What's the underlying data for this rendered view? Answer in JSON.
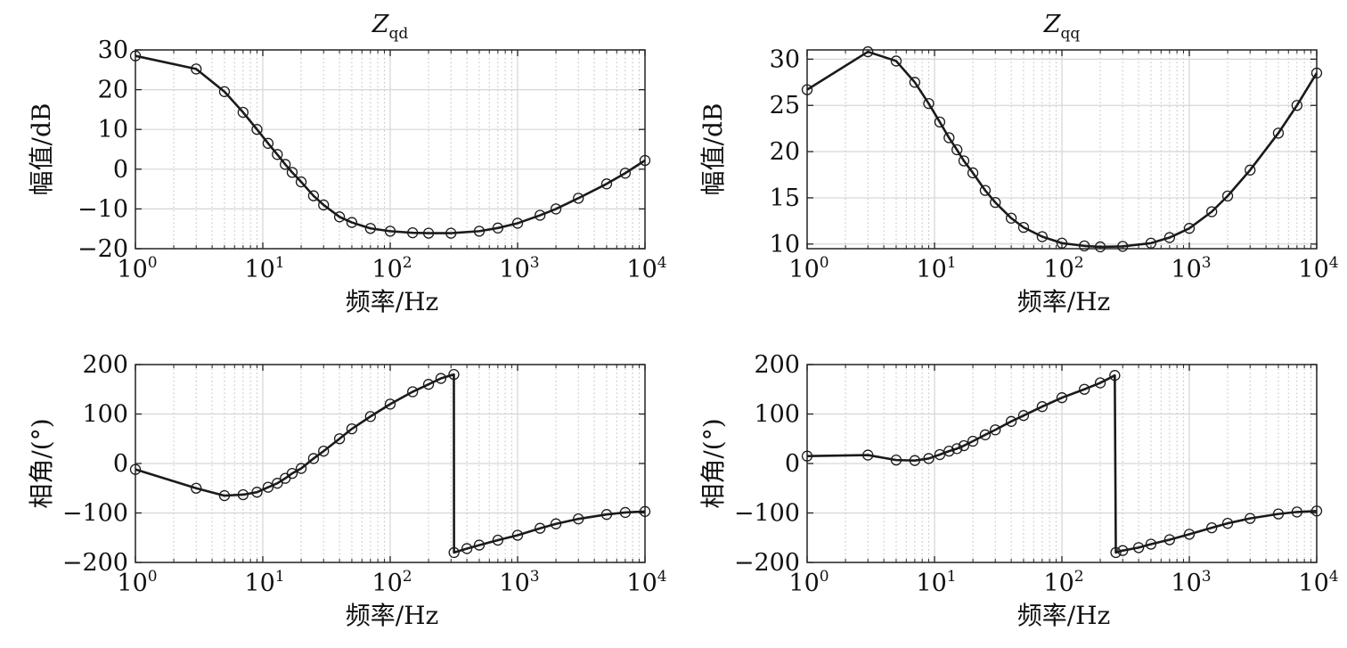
{
  "chart_data": [
    {
      "type": "line",
      "title": "Z_qd",
      "title_main": "Z",
      "title_sub": "qd",
      "xlabel": "频率/Hz",
      "ylabel": "幅值/dB",
      "xscale": "log",
      "xlim": [
        1,
        10000
      ],
      "ylim": [
        -20,
        30
      ],
      "x_ticks": [
        "10^0",
        "10^1",
        "10^2",
        "10^3",
        "10^4"
      ],
      "y_ticks": [
        "30",
        "20",
        "10",
        "0",
        "−10",
        "−20"
      ],
      "y_tick_values": [
        30,
        20,
        10,
        0,
        -10,
        -20
      ],
      "grid": true,
      "marker": "circle",
      "series": [
        {
          "points": [
            [
              1,
              28.5
            ],
            [
              3,
              25.2
            ],
            [
              5,
              19.5
            ],
            [
              7,
              14.3
            ],
            [
              9,
              10.0
            ],
            [
              11,
              6.5
            ],
            [
              13,
              3.7
            ],
            [
              15,
              1.2
            ],
            [
              17,
              -0.8
            ],
            [
              20,
              -3.2
            ],
            [
              25,
              -6.7
            ],
            [
              30,
              -9.0
            ],
            [
              40,
              -12.0
            ],
            [
              50,
              -13.4
            ],
            [
              70,
              -14.9
            ],
            [
              100,
              -15.6
            ],
            [
              150,
              -16.0
            ],
            [
              200,
              -16.1
            ],
            [
              300,
              -16.1
            ],
            [
              500,
              -15.6
            ],
            [
              700,
              -14.8
            ],
            [
              1000,
              -13.6
            ],
            [
              1500,
              -11.6
            ],
            [
              2000,
              -10.0
            ],
            [
              3000,
              -7.3
            ],
            [
              5000,
              -3.7
            ],
            [
              7000,
              -1.0
            ],
            [
              10000,
              2.2
            ]
          ]
        }
      ]
    },
    {
      "type": "line",
      "title": "Z_qq",
      "title_main": "Z",
      "title_sub": "qq",
      "xlabel": "频率/Hz",
      "ylabel": "幅值/dB",
      "xscale": "log",
      "xlim": [
        1,
        10000
      ],
      "ylim": [
        9.5,
        31
      ],
      "x_ticks": [
        "10^0",
        "10^1",
        "10^2",
        "10^3",
        "10^4"
      ],
      "y_ticks": [
        "30",
        "25",
        "20",
        "15",
        "10"
      ],
      "y_tick_values": [
        30,
        25,
        20,
        15,
        10
      ],
      "grid": true,
      "marker": "circle",
      "series": [
        {
          "points": [
            [
              1,
              26.7
            ],
            [
              3,
              30.8
            ],
            [
              5,
              29.8
            ],
            [
              7,
              27.5
            ],
            [
              9,
              25.2
            ],
            [
              11,
              23.2
            ],
            [
              13,
              21.5
            ],
            [
              15,
              20.2
            ],
            [
              17,
              19.0
            ],
            [
              20,
              17.7
            ],
            [
              25,
              15.8
            ],
            [
              30,
              14.5
            ],
            [
              40,
              12.8
            ],
            [
              50,
              11.8
            ],
            [
              70,
              10.8
            ],
            [
              100,
              10.1
            ],
            [
              150,
              9.8
            ],
            [
              200,
              9.7
            ],
            [
              300,
              9.75
            ],
            [
              500,
              10.1
            ],
            [
              700,
              10.7
            ],
            [
              1000,
              11.7
            ],
            [
              1500,
              13.5
            ],
            [
              2000,
              15.2
            ],
            [
              3000,
              18.0
            ],
            [
              5000,
              22.0
            ],
            [
              7000,
              25.0
            ],
            [
              10000,
              28.5
            ]
          ]
        }
      ]
    },
    {
      "type": "line",
      "xlabel": "频率/Hz",
      "ylabel": "相角/(°)",
      "xscale": "log",
      "xlim": [
        1,
        10000
      ],
      "ylim": [
        -200,
        200
      ],
      "x_ticks": [
        "10^0",
        "10^1",
        "10^2",
        "10^3",
        "10^4"
      ],
      "y_ticks": [
        "200",
        "100",
        "0",
        "−100",
        "−200"
      ],
      "y_tick_values": [
        200,
        100,
        0,
        -100,
        -200
      ],
      "grid": true,
      "marker": "circle",
      "series": [
        {
          "points": [
            [
              1,
              -12
            ],
            [
              3,
              -50
            ],
            [
              5,
              -65
            ],
            [
              7,
              -63
            ],
            [
              9,
              -58
            ],
            [
              11,
              -48
            ],
            [
              13,
              -40
            ],
            [
              15,
              -30
            ],
            [
              17,
              -20
            ],
            [
              20,
              -10
            ],
            [
              25,
              10
            ],
            [
              30,
              25
            ],
            [
              40,
              50
            ],
            [
              50,
              70
            ],
            [
              70,
              95
            ],
            [
              100,
              120
            ],
            [
              150,
              145
            ],
            [
              200,
              160
            ],
            [
              250,
              172
            ],
            [
              316,
              180
            ],
            [
              317,
              -180
            ],
            [
              400,
              -172
            ],
            [
              500,
              -165
            ],
            [
              700,
              -155
            ],
            [
              1000,
              -145
            ],
            [
              1500,
              -131
            ],
            [
              2000,
              -122
            ],
            [
              3000,
              -112
            ],
            [
              5000,
              -103
            ],
            [
              7000,
              -99
            ],
            [
              10000,
              -97
            ]
          ]
        }
      ]
    },
    {
      "type": "line",
      "xlabel": "频率/Hz",
      "ylabel": "相角/(°)",
      "xscale": "log",
      "xlim": [
        1,
        10000
      ],
      "ylim": [
        -200,
        200
      ],
      "x_ticks": [
        "10^0",
        "10^1",
        "10^2",
        "10^3",
        "10^4"
      ],
      "y_ticks": [
        "200",
        "100",
        "0",
        "−100",
        "−200"
      ],
      "y_tick_values": [
        200,
        100,
        0,
        -100,
        -200
      ],
      "grid": true,
      "marker": "circle",
      "series": [
        {
          "points": [
            [
              1,
              15
            ],
            [
              3,
              17
            ],
            [
              5,
              7
            ],
            [
              7,
              6
            ],
            [
              9,
              10
            ],
            [
              11,
              18
            ],
            [
              13,
              25
            ],
            [
              15,
              30
            ],
            [
              17,
              36
            ],
            [
              20,
              45
            ],
            [
              25,
              58
            ],
            [
              30,
              68
            ],
            [
              40,
              85
            ],
            [
              50,
              97
            ],
            [
              70,
              115
            ],
            [
              100,
              133
            ],
            [
              150,
              150
            ],
            [
              200,
              163
            ],
            [
              260,
              178
            ],
            [
              265,
              -180
            ],
            [
              300,
              -176
            ],
            [
              400,
              -170
            ],
            [
              500,
              -163
            ],
            [
              700,
              -154
            ],
            [
              1000,
              -143
            ],
            [
              1500,
              -130
            ],
            [
              2000,
              -121
            ],
            [
              3000,
              -111
            ],
            [
              5000,
              -102
            ],
            [
              7000,
              -98
            ],
            [
              10000,
              -96
            ]
          ]
        }
      ]
    }
  ]
}
